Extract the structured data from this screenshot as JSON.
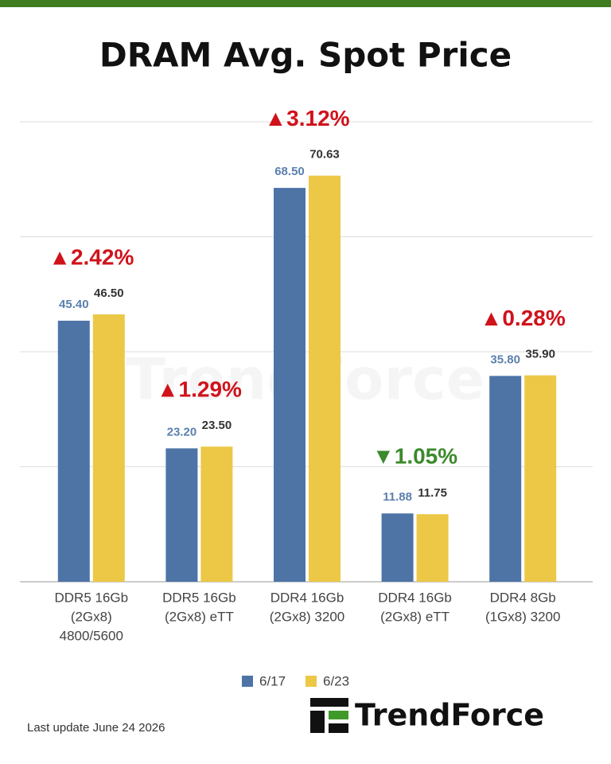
{
  "chart_data": {
    "type": "bar",
    "title": "DRAM Avg. Spot Price",
    "categories": [
      [
        "DDR5 16Gb",
        "(2Gx8)",
        "4800/5600"
      ],
      [
        "DDR5 16Gb",
        "(2Gx8) eTT"
      ],
      [
        "DDR4 16Gb",
        "(2Gx8) 3200"
      ],
      [
        "DDR4 16Gb",
        "(2Gx8) eTT"
      ],
      [
        "DDR4 8Gb",
        "(1Gx8) 3200"
      ]
    ],
    "series": [
      {
        "name": "6/17",
        "color": "#4e74a6",
        "label_color": "#5b7fae",
        "values": [
          45.4,
          23.2,
          68.5,
          11.88,
          35.8
        ],
        "value_labels": [
          "45.40",
          "23.20",
          "68.50",
          "11.88",
          "35.80"
        ]
      },
      {
        "name": "6/23",
        "color": "#ecc846",
        "label_color": "#333333",
        "values": [
          46.5,
          23.5,
          70.63,
          11.75,
          35.9
        ],
        "value_labels": [
          "46.50",
          "23.50",
          "70.63",
          "11.75",
          "35.90"
        ]
      }
    ],
    "annotations": [
      {
        "text": "▲2.42%",
        "color": "#d0121b"
      },
      {
        "text": "▲1.29%",
        "color": "#d0121b"
      },
      {
        "text": "▲3.12%",
        "color": "#d0121b"
      },
      {
        "text": "▼1.05%",
        "color": "#3b8a2c"
      },
      {
        "text": "▲0.28%",
        "color": "#d0121b"
      }
    ],
    "ylim": [
      0,
      80
    ],
    "yticks": [
      0,
      20,
      40,
      60,
      80
    ],
    "grid": true,
    "legend": "bottom",
    "footnote": "Last update  June 24  2026",
    "logo": "TrendForce",
    "watermark": "TrendForce"
  }
}
